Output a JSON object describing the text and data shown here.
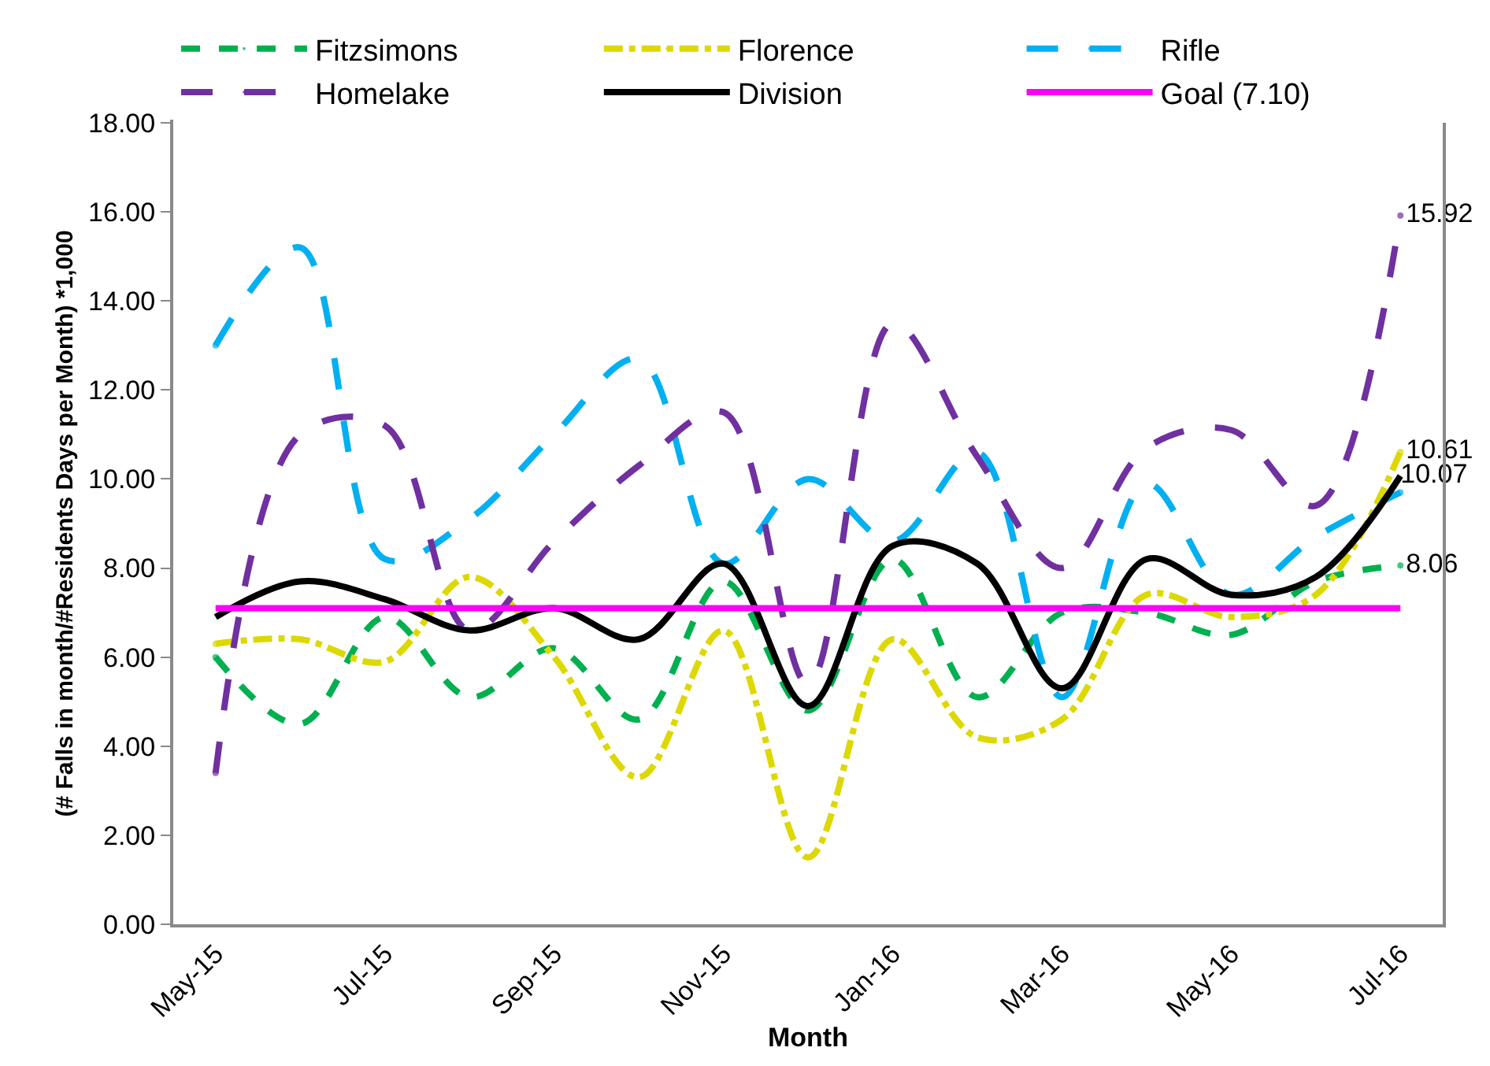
{
  "chart_data": {
    "type": "line",
    "xlabel": "Month",
    "ylabel": "(# Falls in month/#Residents Days per Month) *1,000",
    "categories": [
      "May-15",
      null,
      "Jul-15",
      null,
      "Sep-15",
      null,
      "Nov-15",
      null,
      "Jan-16",
      null,
      "Mar-16",
      null,
      "May-16",
      null,
      "Jul-16"
    ],
    "series": [
      {
        "name": "Fitzsimons",
        "color": "#00b050",
        "line_style": "dashed",
        "values": [
          6.0,
          4.5,
          6.9,
          5.1,
          6.2,
          4.6,
          7.7,
          4.8,
          8.2,
          5.1,
          7.0,
          7.0,
          6.5,
          7.7,
          8.06
        ],
        "value_labels": [
          null,
          null,
          null,
          null,
          null,
          null,
          null,
          null,
          null,
          null,
          null,
          null,
          null,
          null,
          "8.06"
        ]
      },
      {
        "name": "Florence",
        "color": "#dcd800",
        "line_style": "dashdot",
        "values": [
          6.3,
          6.4,
          5.9,
          7.8,
          6.0,
          3.3,
          6.6,
          1.5,
          6.4,
          4.2,
          4.6,
          7.4,
          6.9,
          7.4,
          10.61
        ],
        "value_labels": [
          null,
          null,
          null,
          null,
          null,
          null,
          null,
          null,
          null,
          null,
          null,
          null,
          null,
          null,
          "10.61"
        ]
      },
      {
        "name": "Rifle",
        "color": "#00b0f0",
        "line_style": "longdash",
        "values": [
          13.0,
          15.2,
          8.2,
          9.1,
          11.0,
          12.7,
          8.1,
          10.0,
          8.6,
          10.6,
          5.1,
          9.9,
          7.4,
          8.7,
          9.7
        ]
      },
      {
        "name": "Homelake",
        "color": "#7030a0",
        "line_style": "longdash",
        "values": [
          3.4,
          11.0,
          11.2,
          6.6,
          8.6,
          10.3,
          11.5,
          5.4,
          13.5,
          10.5,
          8.0,
          10.7,
          11.1,
          9.4,
          15.92
        ],
        "value_labels": [
          null,
          null,
          null,
          null,
          null,
          null,
          null,
          null,
          null,
          null,
          null,
          null,
          null,
          null,
          "15.92"
        ]
      },
      {
        "name": "Division",
        "color": "#000000",
        "line_style": "solid",
        "values": [
          6.9,
          7.7,
          7.3,
          6.6,
          7.1,
          6.4,
          8.1,
          4.9,
          8.5,
          8.1,
          5.3,
          8.2,
          7.4,
          7.8,
          10.07
        ],
        "value_labels": [
          null,
          null,
          null,
          null,
          null,
          null,
          null,
          null,
          null,
          null,
          null,
          null,
          null,
          null,
          "10.07"
        ]
      },
      {
        "name": "Goal (7.10)",
        "color": "#ff00ff",
        "line_style": "solid",
        "values": [
          7.1,
          7.1,
          7.1,
          7.1,
          7.1,
          7.1,
          7.1,
          7.1,
          7.1,
          7.1,
          7.1,
          7.1,
          7.1,
          7.1,
          7.1
        ]
      }
    ],
    "ylim": [
      0,
      18
    ],
    "yticks": [
      {
        "value": 0,
        "label": "0.00"
      },
      {
        "value": 2,
        "label": "2.00"
      },
      {
        "value": 4,
        "label": "4.00"
      },
      {
        "value": 6,
        "label": "6.00"
      },
      {
        "value": 8,
        "label": "8.00"
      },
      {
        "value": 10,
        "label": "10.00"
      },
      {
        "value": 12,
        "label": "12.00"
      },
      {
        "value": 14,
        "label": "14.00"
      },
      {
        "value": 16,
        "label": "16.00"
      },
      {
        "value": 18,
        "label": "18.00"
      }
    ],
    "legend": "top",
    "marker": "none"
  }
}
